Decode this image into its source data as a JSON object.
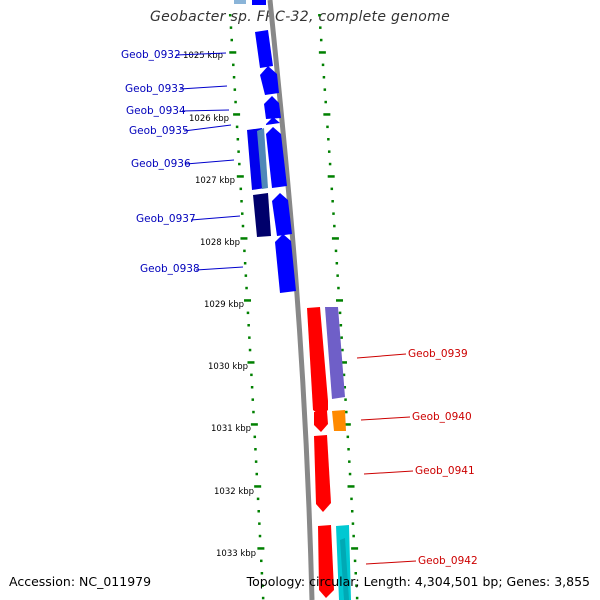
{
  "title": "Geobacter sp. FRC-32, complete genome",
  "accession": "Accession: NC_011979",
  "topology": "Topology: circular; Length: 4,304,501 bp; Genes: 3,855",
  "ticks": [
    "1025 kbp",
    "1026 kbp",
    "1027 kbp",
    "1028 kbp",
    "1029 kbp",
    "1030 kbp",
    "1031 kbp",
    "1032 kbp",
    "1033 kbp"
  ],
  "genes_left": [
    "Geob_0932",
    "Geob_0933",
    "Geob_0934",
    "Geob_0935",
    "Geob_0936",
    "Geob_0937",
    "Geob_0938"
  ],
  "genes_right": [
    "Geob_0939",
    "Geob_0940",
    "Geob_0941",
    "Geob_0942"
  ],
  "colors": {
    "reverse_strand": "#0000ff",
    "forward_strand": "#ff0000",
    "backbone": "#888888",
    "tick_marks": "#008000",
    "label_left": "#0000bb",
    "label_right": "#cc0000"
  }
}
